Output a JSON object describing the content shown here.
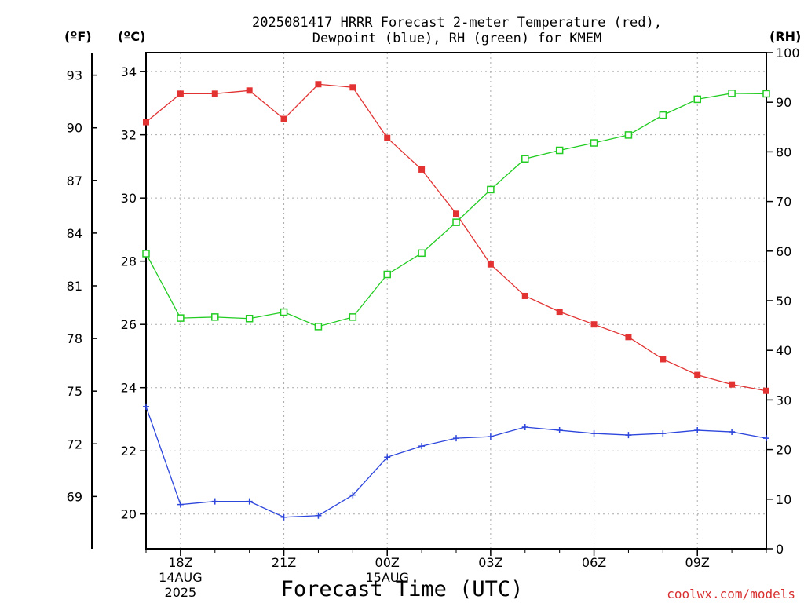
{
  "chart_data": {
    "type": "line",
    "title_lines": [
      "2025081417 HRRR Forecast 2-meter Temperature (red),",
      "Dewpoint (blue), RH (green) for KMEM"
    ],
    "xlabel": "Forecast Time (UTC)",
    "credit": "coolwx.com/models",
    "unit_labels": {
      "fahrenheit": "(ºF)",
      "celsius": "(ºC)",
      "rh": "(RH)"
    },
    "x_hours": [
      17,
      18,
      19,
      20,
      21,
      22,
      23,
      24,
      25,
      26,
      27,
      28,
      29,
      30,
      31,
      32,
      33,
      34,
      35
    ],
    "x_range": [
      17,
      35
    ],
    "x_ticks": [
      {
        "hour": 18,
        "label": "18Z",
        "date": "14AUG",
        "year": "2025"
      },
      {
        "hour": 21,
        "label": "21Z"
      },
      {
        "hour": 24,
        "label": "00Z",
        "date": "15AUG"
      },
      {
        "hour": 27,
        "label": "03Z"
      },
      {
        "hour": 30,
        "label": "06Z"
      },
      {
        "hour": 33,
        "label": "09Z"
      }
    ],
    "y_celsius": {
      "range": [
        18.9,
        34.6
      ],
      "ticks": [
        "20",
        "22",
        "24",
        "26",
        "28",
        "30",
        "32",
        "34"
      ]
    },
    "y_fahrenheit": {
      "ticks": [
        "69",
        "72",
        "75",
        "78",
        "81",
        "84",
        "87",
        "90",
        "93"
      ]
    },
    "y_rh": {
      "range": [
        0,
        100
      ],
      "ticks": [
        "0",
        "10",
        "20",
        "30",
        "40",
        "50",
        "60",
        "70",
        "80",
        "90",
        "100"
      ]
    },
    "colors": {
      "temperature": "#e23232",
      "dewpoint": "#2d46dc",
      "rh": "#22cc22",
      "grid": "#aaaaaa"
    },
    "series": [
      {
        "key": "temperature",
        "axis": "celsius",
        "marker": "filled-square",
        "values": [
          32.4,
          33.3,
          33.3,
          33.4,
          32.5,
          33.6,
          33.5,
          31.9,
          30.9,
          29.5,
          27.9,
          26.9,
          26.4,
          26.0,
          25.6,
          24.9,
          24.4,
          24.1,
          23.9
        ]
      },
      {
        "key": "dewpoint",
        "axis": "celsius",
        "marker": "plus",
        "values": [
          23.4,
          20.3,
          20.4,
          20.4,
          19.9,
          19.95,
          20.6,
          21.8,
          22.15,
          22.4,
          22.45,
          22.75,
          22.65,
          22.55,
          22.5,
          22.55,
          22.65,
          22.6,
          22.4
        ]
      },
      {
        "key": "rh",
        "axis": "rh",
        "marker": "open-square",
        "values": [
          59.5,
          46.5,
          46.7,
          46.4,
          47.7,
          44.8,
          46.7,
          55.3,
          59.6,
          65.8,
          72.4,
          78.6,
          80.3,
          81.8,
          83.4,
          87.4,
          90.6,
          91.8,
          91.7
        ]
      }
    ]
  }
}
